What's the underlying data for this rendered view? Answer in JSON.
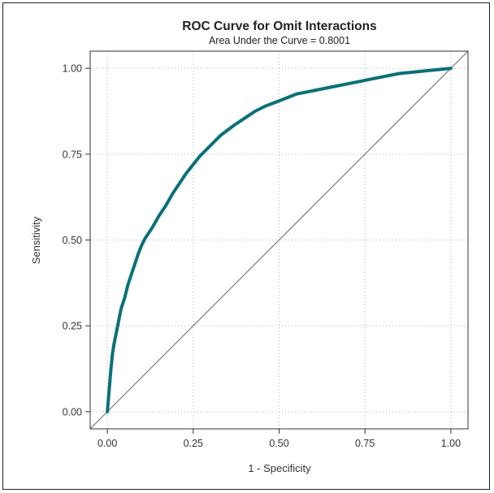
{
  "chart_data": {
    "type": "line",
    "title": "ROC Curve for Omit Interactions",
    "subtitle": "Area Under the Curve = 0.8001",
    "xlabel": "1 - Specificity",
    "ylabel": "Sensitivity",
    "xlim": [
      -0.05,
      1.05
    ],
    "ylim": [
      -0.05,
      1.05
    ],
    "xticks": [
      "0.00",
      "0.25",
      "0.50",
      "0.75",
      "1.00"
    ],
    "yticks": [
      "0.00",
      "0.25",
      "0.50",
      "0.75",
      "1.00"
    ],
    "xtick_values": [
      0,
      0.25,
      0.5,
      0.75,
      1.0
    ],
    "ytick_values": [
      0,
      0.25,
      0.5,
      0.75,
      1.0
    ],
    "grid": true,
    "grid_style": "dotted",
    "series": [
      {
        "color": "#0a7079",
        "x": [
          0.0,
          0.005,
          0.01,
          0.015,
          0.02,
          0.03,
          0.04,
          0.05,
          0.06,
          0.07,
          0.08,
          0.09,
          0.1,
          0.11,
          0.12,
          0.13,
          0.15,
          0.17,
          0.19,
          0.21,
          0.23,
          0.25,
          0.27,
          0.29,
          0.31,
          0.33,
          0.35,
          0.37,
          0.4,
          0.43,
          0.46,
          0.5,
          0.55,
          0.6,
          0.65,
          0.7,
          0.75,
          0.8,
          0.85,
          0.9,
          0.95,
          1.0
        ],
        "y": [
          0.0,
          0.06,
          0.12,
          0.17,
          0.2,
          0.25,
          0.3,
          0.33,
          0.37,
          0.4,
          0.43,
          0.46,
          0.485,
          0.505,
          0.52,
          0.535,
          0.57,
          0.6,
          0.635,
          0.665,
          0.695,
          0.72,
          0.745,
          0.765,
          0.785,
          0.805,
          0.82,
          0.835,
          0.855,
          0.875,
          0.89,
          0.905,
          0.925,
          0.935,
          0.945,
          0.955,
          0.965,
          0.975,
          0.985,
          0.99,
          0.995,
          1.0
        ]
      },
      {
        "color": "#666666",
        "x": [
          -0.05,
          1.05
        ],
        "y": [
          -0.05,
          1.05
        ]
      }
    ]
  }
}
